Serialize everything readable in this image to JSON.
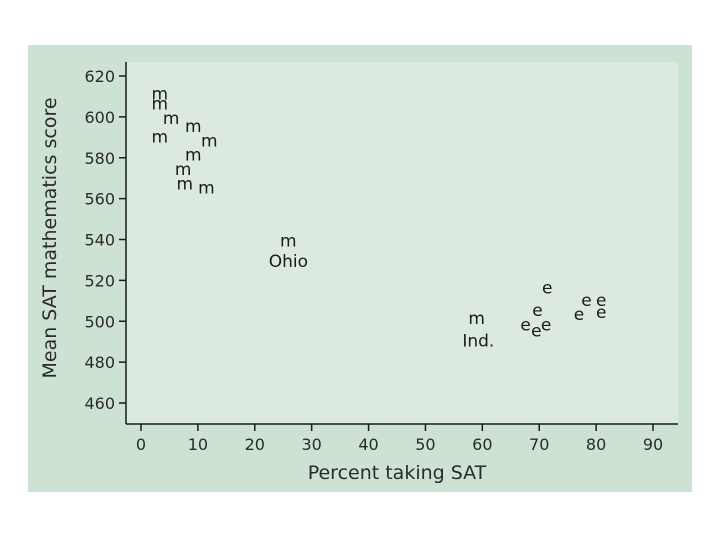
{
  "chart_data": {
    "type": "scatter",
    "title": "",
    "xlabel": "Percent taking SAT",
    "ylabel": "Mean SAT mathematics score",
    "xlim": [
      0,
      90
    ],
    "ylim": [
      460,
      620
    ],
    "xticks": [
      0,
      10,
      20,
      30,
      40,
      50,
      60,
      70,
      80,
      90
    ],
    "yticks": [
      460,
      480,
      500,
      520,
      540,
      560,
      580,
      600,
      620
    ],
    "grid": false,
    "legend": "none",
    "colors": {
      "figure_background": "#cee2d4",
      "plot_background": "#dbe9de",
      "ink": "#1a1a1a"
    },
    "points": [
      {
        "x": 3.3,
        "y": 611,
        "label": "m"
      },
      {
        "x": 3.3,
        "y": 606,
        "label": "m"
      },
      {
        "x": 5.3,
        "y": 599,
        "label": "m"
      },
      {
        "x": 3.3,
        "y": 590,
        "label": "m"
      },
      {
        "x": 9.2,
        "y": 595,
        "label": "m"
      },
      {
        "x": 12.0,
        "y": 588,
        "label": "m"
      },
      {
        "x": 9.2,
        "y": 581,
        "label": "m"
      },
      {
        "x": 7.4,
        "y": 574,
        "label": "m"
      },
      {
        "x": 7.7,
        "y": 567,
        "label": "m"
      },
      {
        "x": 11.5,
        "y": 565,
        "label": "m"
      },
      {
        "x": 25.9,
        "y": 539,
        "label": "m"
      },
      {
        "x": 59.0,
        "y": 501,
        "label": "m"
      },
      {
        "x": 71.4,
        "y": 516,
        "label": "e"
      },
      {
        "x": 69.7,
        "y": 505,
        "label": "e"
      },
      {
        "x": 67.6,
        "y": 498,
        "label": "e"
      },
      {
        "x": 69.5,
        "y": 495,
        "label": "e"
      },
      {
        "x": 71.2,
        "y": 498,
        "label": "e"
      },
      {
        "x": 78.3,
        "y": 510,
        "label": "e"
      },
      {
        "x": 80.9,
        "y": 510,
        "label": "e"
      },
      {
        "x": 77.0,
        "y": 503,
        "label": "e"
      },
      {
        "x": 80.9,
        "y": 504,
        "label": "e"
      }
    ],
    "annotations": [
      {
        "x": 25.9,
        "y": 529,
        "text": "Ohio"
      },
      {
        "x": 59.3,
        "y": 490,
        "text": "Ind."
      }
    ]
  }
}
